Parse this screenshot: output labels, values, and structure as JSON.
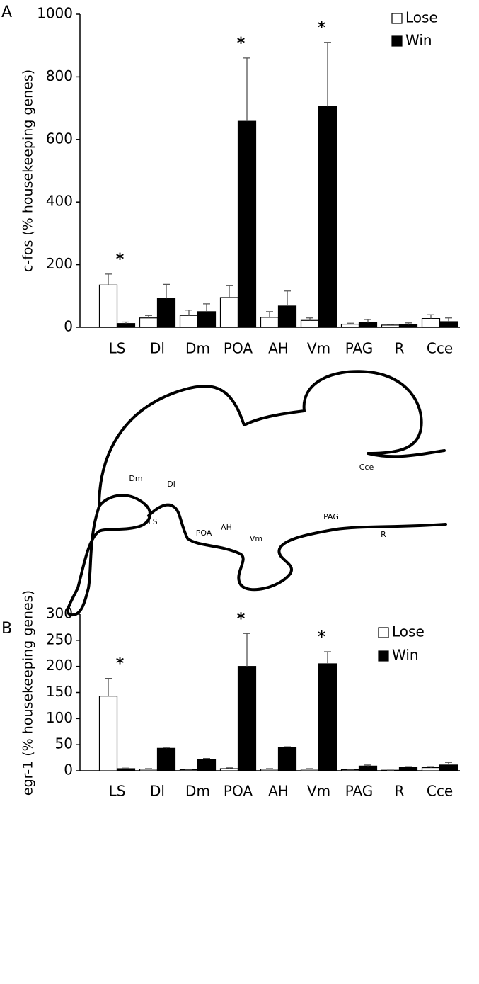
{
  "chart_data": [
    {
      "type": "bar",
      "panel": "A",
      "ylabel": "c-fos (% housekeeping genes)",
      "categories": [
        "LS",
        "Dl",
        "Dm",
        "POA",
        "AH",
        "Vm",
        "PAG",
        "R",
        "Cce"
      ],
      "series": [
        {
          "name": "Lose",
          "color": "#ffffff",
          "values": [
            135,
            30,
            38,
            95,
            32,
            22,
            10,
            7,
            28
          ],
          "errors": [
            35,
            8,
            17,
            38,
            18,
            8,
            3,
            2,
            12
          ]
        },
        {
          "name": "Win",
          "color": "#000000",
          "values": [
            12,
            92,
            50,
            658,
            68,
            705,
            15,
            8,
            18
          ],
          "errors": [
            5,
            45,
            25,
            202,
            48,
            205,
            10,
            6,
            12
          ]
        }
      ],
      "significance": [
        "*",
        null,
        null,
        "*",
        null,
        "*",
        null,
        null,
        null
      ],
      "ylim": [
        0,
        1000
      ],
      "yticks": [
        0,
        200,
        400,
        600,
        800,
        1000
      ]
    },
    {
      "type": "bar",
      "panel": "B",
      "ylabel": "egr-1 (% housekeeping genes)",
      "categories": [
        "LS",
        "Dl",
        "Dm",
        "POA",
        "AH",
        "Vm",
        "PAG",
        "R",
        "Cce"
      ],
      "series": [
        {
          "name": "Lose",
          "color": "#ffffff",
          "values": [
            143,
            3,
            2,
            4,
            3,
            3,
            2,
            1,
            6
          ],
          "errors": [
            34,
            1,
            0.5,
            1.5,
            1,
            1,
            0.5,
            0.3,
            2
          ]
        },
        {
          "name": "Win",
          "color": "#000000",
          "values": [
            4,
            43,
            22,
            200,
            45,
            205,
            9,
            7,
            11
          ],
          "errors": [
            1,
            2,
            1.5,
            63,
            1,
            23,
            2,
            1,
            5
          ]
        }
      ],
      "significance": [
        "*",
        null,
        null,
        "*",
        null,
        "*",
        null,
        null,
        null
      ],
      "ylim": [
        0,
        300
      ],
      "yticks": [
        0,
        50,
        100,
        150,
        200,
        250,
        300
      ]
    }
  ],
  "diagram": {
    "labels": [
      "Dm",
      "Dl",
      "LS",
      "AH",
      "POA",
      "Vm",
      "PAG",
      "R",
      "Cce"
    ]
  }
}
